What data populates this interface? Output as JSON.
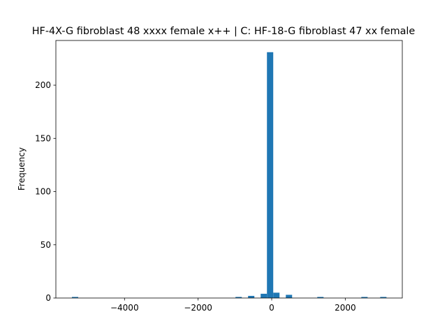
{
  "chart_data": {
    "type": "histogram",
    "title": "HF-4X-G fibroblast 48 xxxx female x++ | C: HF-18-G fibroblast 47 xx female",
    "ylabel": "Frequency",
    "color": "#1f77b4",
    "bins": [
      -5430,
      -5259,
      -5088,
      -4917,
      -4746,
      -4575,
      -4404,
      -4233,
      -4062,
      -3891,
      -3720,
      -3549,
      -3378,
      -3207,
      -3036,
      -2865,
      -2694,
      -2523,
      -2352,
      -2181,
      -2010,
      -1839,
      -1668,
      -1497,
      -1326,
      -1155,
      -984,
      -813,
      -642,
      -471,
      -300,
      -129,
      42,
      213,
      384,
      555,
      726,
      897,
      1068,
      1239,
      1410,
      1581,
      1752,
      1923,
      2094,
      2265,
      2436,
      2607,
      2778,
      2949,
      3120
    ],
    "values": [
      1,
      0,
      0,
      0,
      0,
      0,
      0,
      0,
      0,
      0,
      0,
      0,
      0,
      0,
      0,
      0,
      0,
      0,
      0,
      0,
      0,
      0,
      0,
      0,
      0,
      0,
      1,
      0,
      2,
      0,
      4,
      231,
      5,
      0,
      3,
      0,
      0,
      0,
      0,
      1,
      0,
      0,
      0,
      0,
      0,
      0,
      1,
      0,
      0,
      1
    ],
    "xlim": [
      -5866,
      3550
    ],
    "ylim": [
      0,
      242
    ],
    "xticks": [
      {
        "value": -4000,
        "label": "−4000"
      },
      {
        "value": -2000,
        "label": "−2000"
      },
      0,
      2000
    ],
    "yticks": [
      0,
      50,
      100,
      150,
      200
    ]
  }
}
